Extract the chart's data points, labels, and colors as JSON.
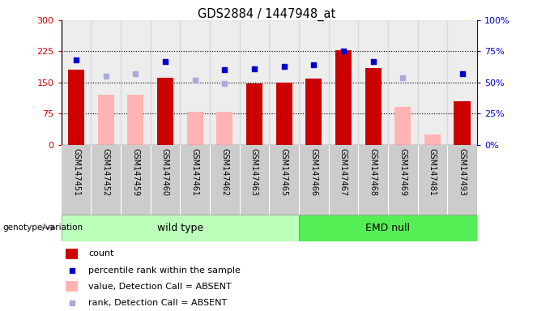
{
  "title": "GDS2884 / 1447948_at",
  "samples": [
    "GSM147451",
    "GSM147452",
    "GSM147459",
    "GSM147460",
    "GSM147461",
    "GSM147462",
    "GSM147463",
    "GSM147465",
    "GSM147466",
    "GSM147467",
    "GSM147468",
    "GSM147469",
    "GSM147481",
    "GSM147493"
  ],
  "count": [
    180,
    null,
    null,
    162,
    null,
    null,
    147,
    150,
    160,
    228,
    185,
    null,
    null,
    105
  ],
  "count_absent_value": [
    null,
    120,
    120,
    null,
    80,
    80,
    null,
    null,
    null,
    null,
    null,
    90,
    25,
    null
  ],
  "percentile_rank": [
    68,
    null,
    null,
    67,
    null,
    60,
    61,
    63,
    64,
    75,
    67,
    null,
    null,
    57
  ],
  "rank_absent": [
    null,
    55,
    57,
    null,
    52,
    49,
    null,
    null,
    null,
    null,
    null,
    54,
    null,
    null
  ],
  "wt_count": 8,
  "emd_count": 6,
  "ylim_left": [
    0,
    300
  ],
  "ylim_right": [
    0,
    100
  ],
  "yticks_left": [
    0,
    75,
    150,
    225,
    300
  ],
  "yticks_right": [
    0,
    25,
    50,
    75,
    100
  ],
  "hlines": [
    75,
    150,
    225
  ],
  "bar_color_count": "#cc0000",
  "bar_color_absent_value": "#ffb3b3",
  "scatter_color_rank": "#0000cc",
  "scatter_color_absent_rank": "#aaaadd",
  "group_color_wt": "#bbffbb",
  "group_color_emd": "#55ee55",
  "label_bg_color": "#cccccc",
  "legend_items": [
    {
      "label": "count",
      "color": "#cc0000",
      "type": "bar"
    },
    {
      "label": "percentile rank within the sample",
      "color": "#0000cc",
      "type": "scatter"
    },
    {
      "label": "value, Detection Call = ABSENT",
      "color": "#ffb3b3",
      "type": "bar"
    },
    {
      "label": "rank, Detection Call = ABSENT",
      "color": "#aaaadd",
      "type": "scatter"
    }
  ]
}
